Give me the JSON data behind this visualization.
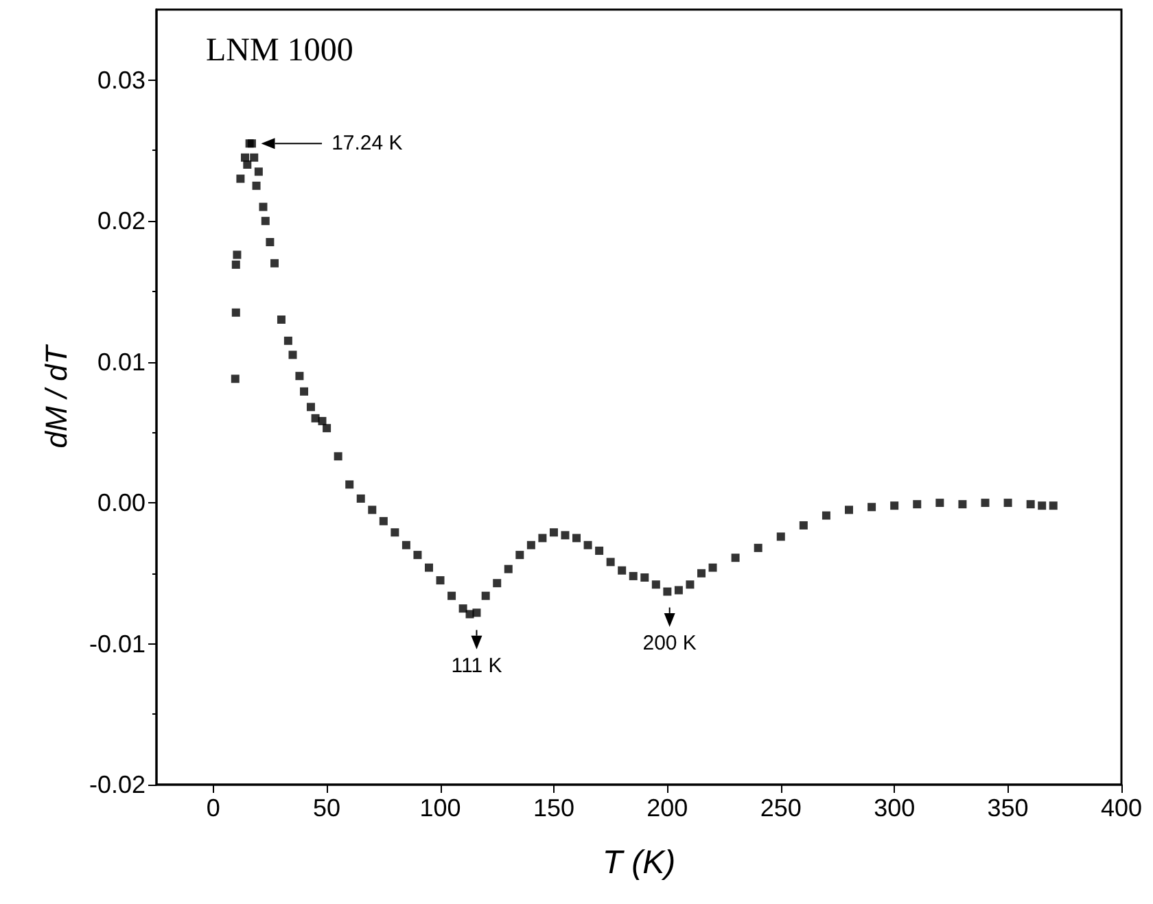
{
  "chart_data": {
    "type": "scatter",
    "title": "LNM 1000",
    "xlabel": "T (K)",
    "ylabel": "dM / dT",
    "xlim": [
      -25,
      400
    ],
    "xticks": [
      0,
      50,
      100,
      150,
      200,
      250,
      300,
      350,
      400
    ],
    "ylim": [
      -0.02,
      0.035
    ],
    "yticks": [
      -0.02,
      -0.01,
      {
        "value": 0,
        "label": "0.00"
      },
      0.01,
      0.02,
      0.03
    ],
    "marker": "square",
    "series": [
      {
        "color": "#000000",
        "x": [
          9.7,
          10,
          10,
          10.5,
          12,
          14,
          15,
          16,
          17,
          18,
          19,
          20,
          22,
          23,
          25,
          27,
          30,
          33,
          35,
          38,
          40,
          43,
          45,
          48,
          50,
          55,
          60,
          65,
          70,
          75,
          80,
          85,
          90,
          95,
          100,
          105,
          110,
          113,
          116,
          120,
          125,
          130,
          135,
          140,
          145,
          150,
          155,
          160,
          165,
          170,
          175,
          180,
          185,
          190,
          195,
          200,
          205,
          210,
          215,
          220,
          230,
          240,
          250,
          260,
          270,
          280,
          290,
          300,
          310,
          320,
          330,
          340,
          350,
          360,
          365,
          370
        ],
        "values": [
          0.0088,
          0.0135,
          0.0169,
          0.0176,
          0.023,
          0.0245,
          0.024,
          0.0255,
          0.0255,
          0.0245,
          0.0225,
          0.0235,
          0.021,
          0.02,
          0.0185,
          0.017,
          0.013,
          0.0115,
          0.0105,
          0.009,
          0.0079,
          0.0068,
          0.006,
          0.0058,
          0.0053,
          0.0033,
          0.0013,
          0.0003,
          -0.0005,
          -0.0013,
          -0.0021,
          -0.003,
          -0.0037,
          -0.0046,
          -0.0055,
          -0.0066,
          -0.0075,
          -0.0079,
          -0.0078,
          -0.0066,
          -0.0057,
          -0.0047,
          -0.0037,
          -0.003,
          -0.0025,
          -0.0021,
          -0.0023,
          -0.0025,
          -0.003,
          -0.0034,
          -0.0042,
          -0.0048,
          -0.0052,
          -0.0053,
          -0.0058,
          -0.0063,
          -0.0062,
          -0.0058,
          -0.005,
          -0.0046,
          -0.0039,
          -0.0032,
          -0.0024,
          -0.0016,
          -0.0009,
          -0.0005,
          -0.0003,
          -0.0002,
          -0.0001,
          0.0,
          -0.0001,
          0.0,
          0.0,
          -0.0001,
          -0.0002,
          -0.0002
        ]
      }
    ],
    "annotations": [
      "17.24 K",
      {
        "text": "111 K",
        "x": 116,
        "y": -0.0082
      },
      {
        "text": "200 K",
        "x": 201,
        "y": -0.0066
      }
    ]
  }
}
